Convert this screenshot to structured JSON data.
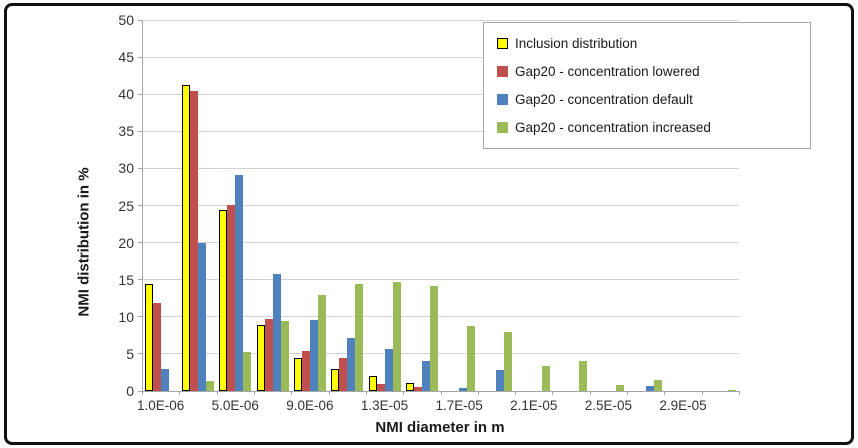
{
  "colors": {
    "grid": "#d2d2d2",
    "axis": "#a6a6a6",
    "tick_text": "#333333",
    "frame": "#111111",
    "legend_border": "#a6a6a6",
    "background": "#ffffff"
  },
  "chart_data": {
    "type": "bar",
    "title": "",
    "xlabel": "NMI diameter in m",
    "ylabel": "NMI distribution in %",
    "ylim": [
      0,
      50
    ],
    "yticks": [
      0,
      5,
      10,
      15,
      20,
      25,
      30,
      35,
      40,
      45,
      50
    ],
    "grid": true,
    "legend_position": "top-right",
    "categories": [
      "1.0E-06",
      "3.0E-06",
      "5.0E-06",
      "7.0E-06",
      "9.0E-06",
      "1.1E-05",
      "1.3E-05",
      "1.5E-05",
      "1.7E-05",
      "1.9E-05",
      "2.1E-05",
      "2.3E-05",
      "2.5E-05",
      "2.7E-05",
      "2.9E-05",
      "3.1E-05"
    ],
    "xtick_labels_shown": [
      "1.0E-06",
      "5.0E-06",
      "9.0E-06",
      "1.3E-05",
      "1.7E-05",
      "2.1E-05",
      "2.5E-05",
      "2.9E-05"
    ],
    "series": [
      {
        "name": "Inclusion distribution",
        "color": "#ffff00",
        "border_color": "#000000",
        "values": [
          14.4,
          41.2,
          24.4,
          8.9,
          4.4,
          3.0,
          2.0,
          1.1,
          0,
          0,
          0,
          0,
          0,
          0,
          0,
          0
        ]
      },
      {
        "name": "Gap20 - concentration lowered",
        "color": "#c0504d",
        "values": [
          11.9,
          40.4,
          25.1,
          9.7,
          5.4,
          4.4,
          1.0,
          0.6,
          0,
          0,
          0,
          0,
          0,
          0,
          0,
          0
        ]
      },
      {
        "name": "Gap20 - concentration default",
        "color": "#4f81bd",
        "values": [
          3.0,
          20.0,
          29.1,
          15.8,
          9.6,
          7.2,
          5.6,
          4.1,
          0.4,
          2.8,
          0,
          0,
          0,
          0.7,
          0,
          0
        ]
      },
      {
        "name": "Gap20 - concentration increased",
        "color": "#9bbb59",
        "values": [
          0,
          1.3,
          5.2,
          9.4,
          12.9,
          14.4,
          14.7,
          14.1,
          8.7,
          7.9,
          3.4,
          4.1,
          0.8,
          1.5,
          0,
          0.2
        ]
      }
    ]
  }
}
